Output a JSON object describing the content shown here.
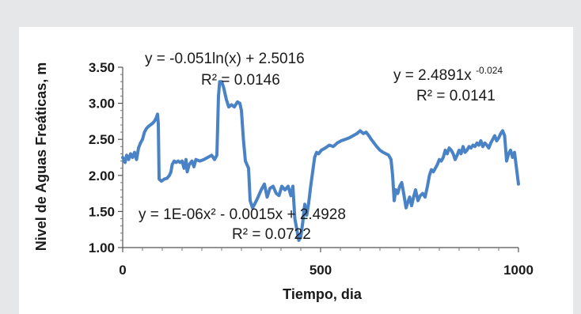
{
  "chart_data": {
    "type": "line",
    "xlabel": "Tiempo, dia",
    "ylabel": "Nivel de Aguas Freáticas, m",
    "xlim": [
      0,
      1000
    ],
    "ylim": [
      1.0,
      3.5
    ],
    "x_ticks": [
      "0",
      "500",
      "1000"
    ],
    "y_ticks": [
      "1.00",
      "1.50",
      "2.00",
      "2.50",
      "3.00",
      "3.50"
    ],
    "grid": false,
    "line_color": "#4a82c6",
    "annotations": [
      {
        "text": "y = -0.051ln(x) + 2.5016"
      },
      {
        "text": "R² = 0.0146"
      },
      {
        "text": "y = 2.4891x",
        "superscript": "-0.024"
      },
      {
        "text": "R² = 0.0141"
      },
      {
        "text": "y = 1E-06x² - 0.0015x + 2.4928"
      },
      {
        "text": "R² = 0.0722"
      }
    ],
    "series": [
      {
        "points": [
          [
            0,
            2.25
          ],
          [
            6,
            2.18
          ],
          [
            10,
            2.28
          ],
          [
            15,
            2.22
          ],
          [
            20,
            2.3
          ],
          [
            25,
            2.25
          ],
          [
            30,
            2.32
          ],
          [
            35,
            2.22
          ],
          [
            40,
            2.38
          ],
          [
            45,
            2.45
          ],
          [
            50,
            2.5
          ],
          [
            55,
            2.6
          ],
          [
            60,
            2.65
          ],
          [
            65,
            2.68
          ],
          [
            70,
            2.7
          ],
          [
            75,
            2.72
          ],
          [
            80,
            2.75
          ],
          [
            85,
            2.8
          ],
          [
            88,
            2.85
          ],
          [
            90,
            2.72
          ],
          [
            92,
            1.95
          ],
          [
            98,
            1.92
          ],
          [
            105,
            1.95
          ],
          [
            112,
            1.96
          ],
          [
            118,
            2.0
          ],
          [
            122,
            2.05
          ],
          [
            125,
            2.15
          ],
          [
            130,
            2.2
          ],
          [
            135,
            2.18
          ],
          [
            140,
            2.2
          ],
          [
            145,
            2.18
          ],
          [
            150,
            2.2
          ],
          [
            155,
            2.1
          ],
          [
            160,
            2.22
          ],
          [
            163,
            2.05
          ],
          [
            168,
            2.15
          ],
          [
            175,
            2.2
          ],
          [
            180,
            2.12
          ],
          [
            185,
            2.22
          ],
          [
            195,
            2.2
          ],
          [
            205,
            2.22
          ],
          [
            215,
            2.25
          ],
          [
            225,
            2.28
          ],
          [
            232,
            2.22
          ],
          [
            238,
            2.28
          ],
          [
            242,
            3.1
          ],
          [
            245,
            3.3
          ],
          [
            250,
            3.3
          ],
          [
            255,
            3.22
          ],
          [
            262,
            3.05
          ],
          [
            268,
            2.95
          ],
          [
            275,
            2.98
          ],
          [
            282,
            2.95
          ],
          [
            290,
            3.02
          ],
          [
            296,
            3.0
          ],
          [
            300,
            2.9
          ],
          [
            305,
            2.5
          ],
          [
            310,
            2.2
          ],
          [
            318,
            2.1
          ],
          [
            322,
            1.65
          ],
          [
            328,
            1.55
          ],
          [
            335,
            1.62
          ],
          [
            342,
            1.7
          ],
          [
            350,
            1.8
          ],
          [
            358,
            1.88
          ],
          [
            365,
            1.7
          ],
          [
            372,
            1.82
          ],
          [
            380,
            1.85
          ],
          [
            388,
            1.75
          ],
          [
            395,
            1.72
          ],
          [
            402,
            1.85
          ],
          [
            410,
            1.8
          ],
          [
            418,
            1.85
          ],
          [
            425,
            1.72
          ],
          [
            430,
            1.85
          ],
          [
            435,
            1.4
          ],
          [
            440,
            1.25
          ],
          [
            445,
            1.1
          ],
          [
            450,
            1.15
          ],
          [
            455,
            1.35
          ],
          [
            460,
            1.6
          ],
          [
            465,
            1.45
          ],
          [
            470,
            1.62
          ],
          [
            475,
            1.85
          ],
          [
            480,
            2.05
          ],
          [
            485,
            2.25
          ],
          [
            490,
            2.32
          ],
          [
            495,
            2.3
          ],
          [
            502,
            2.35
          ],
          [
            512,
            2.38
          ],
          [
            522,
            2.42
          ],
          [
            532,
            2.4
          ],
          [
            542,
            2.45
          ],
          [
            552,
            2.48
          ],
          [
            562,
            2.5
          ],
          [
            572,
            2.52
          ],
          [
            582,
            2.55
          ],
          [
            592,
            2.58
          ],
          [
            600,
            2.62
          ],
          [
            608,
            2.58
          ],
          [
            615,
            2.6
          ],
          [
            622,
            2.55
          ],
          [
            628,
            2.5
          ],
          [
            635,
            2.45
          ],
          [
            642,
            2.4
          ],
          [
            650,
            2.35
          ],
          [
            658,
            2.32
          ],
          [
            665,
            2.3
          ],
          [
            672,
            2.28
          ],
          [
            678,
            2.22
          ],
          [
            682,
            2.0
          ],
          [
            686,
            1.65
          ],
          [
            690,
            1.8
          ],
          [
            695,
            1.75
          ],
          [
            700,
            1.85
          ],
          [
            705,
            1.9
          ],
          [
            710,
            1.75
          ],
          [
            716,
            1.55
          ],
          [
            720,
            1.62
          ],
          [
            725,
            1.7
          ],
          [
            730,
            1.58
          ],
          [
            735,
            1.7
          ],
          [
            740,
            1.8
          ],
          [
            746,
            1.65
          ],
          [
            752,
            1.72
          ],
          [
            758,
            1.75
          ],
          [
            764,
            1.7
          ],
          [
            770,
            1.85
          ],
          [
            775,
            2.0
          ],
          [
            780,
            2.08
          ],
          [
            785,
            2.05
          ],
          [
            790,
            2.1
          ],
          [
            795,
            2.15
          ],
          [
            800,
            2.22
          ],
          [
            805,
            2.2
          ],
          [
            810,
            2.25
          ],
          [
            815,
            2.35
          ],
          [
            820,
            2.3
          ],
          [
            825,
            2.38
          ],
          [
            830,
            2.35
          ],
          [
            835,
            2.3
          ],
          [
            840,
            2.22
          ],
          [
            845,
            2.28
          ],
          [
            850,
            2.35
          ],
          [
            855,
            2.3
          ],
          [
            860,
            2.4
          ],
          [
            865,
            2.32
          ],
          [
            870,
            2.35
          ],
          [
            875,
            2.4
          ],
          [
            880,
            2.38
          ],
          [
            885,
            2.42
          ],
          [
            890,
            2.4
          ],
          [
            895,
            2.45
          ],
          [
            900,
            2.42
          ],
          [
            905,
            2.48
          ],
          [
            910,
            2.4
          ],
          [
            915,
            2.45
          ],
          [
            920,
            2.42
          ],
          [
            925,
            2.38
          ],
          [
            930,
            2.45
          ],
          [
            935,
            2.5
          ],
          [
            940,
            2.55
          ],
          [
            945,
            2.48
          ],
          [
            950,
            2.52
          ],
          [
            955,
            2.58
          ],
          [
            960,
            2.62
          ],
          [
            965,
            2.55
          ],
          [
            970,
            2.2
          ],
          [
            975,
            2.3
          ],
          [
            980,
            2.35
          ],
          [
            985,
            2.25
          ],
          [
            990,
            2.32
          ],
          [
            995,
            2.1
          ],
          [
            1000,
            1.88
          ]
        ]
      }
    ]
  }
}
